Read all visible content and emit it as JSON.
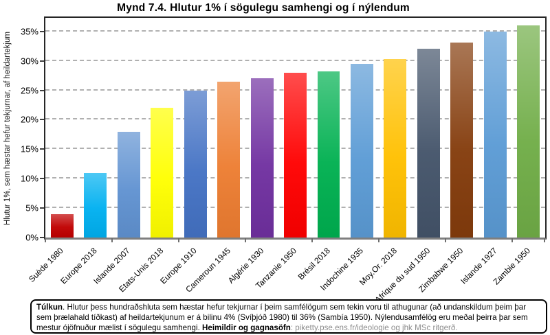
{
  "title": "Mynd 7.4. Hlutur 1% í sögulegu samhengi og í nýlendum",
  "chart_data": {
    "type": "bar",
    "title": "Mynd 7.4. Hlutur 1% í sögulegu samhengi og í nýlendum",
    "xlabel": "",
    "ylabel": "Hlutur 1%, sem hæstar hefur tekjurnar, af heildartekjum",
    "ylim": [
      0,
      37.3
    ],
    "grid": "horizontal-dashed",
    "legend": "none",
    "categories": [
      "Suède 1980",
      "Europe 2018",
      "Islande 2007",
      "Etats-Unis 2018",
      "Europe 1910",
      "Cameroun 1945",
      "Algérie 1930",
      "Tanzanie 1950",
      "Brésil 2018",
      "Indochine 1935",
      "Moy.Or. 2018",
      "Afrique du sud 1950",
      "Zimbabwe 1950",
      "Islande 1927",
      "Zambie 1950"
    ],
    "values": [
      4,
      11,
      18,
      22,
      25,
      26.5,
      27.1,
      28,
      28.2,
      29.5,
      30.3,
      32.1,
      33.1,
      35,
      36
    ],
    "bar_colors": [
      "#C00000",
      "#00B0F0",
      "#6092D1",
      "#FFFF00",
      "#4472C4",
      "#ED7D31",
      "#7030A0",
      "#FF0000",
      "#00B050",
      "#5B9BD5",
      "#FFC000",
      "#44546A",
      "#843C0C",
      "#5B9BD5",
      "#70AD47"
    ],
    "ytick_values": [
      0,
      5,
      10,
      15,
      20,
      25,
      30,
      35
    ],
    "ytick_labels": [
      "0%",
      "5%",
      "10%",
      "15%",
      "20%",
      "25%",
      "30%",
      "35%"
    ],
    "colors": {
      "gridline": "#B0B0B0",
      "plot_border": "#262626",
      "baseline": "#7F7F7F"
    }
  },
  "footnote": {
    "label_bold": "Túlkun",
    "body": ". Hlutur þess hundraðshluta sem hæstar hefur tekjurnar í þeim samfélögum sem tekin voru til athugunar (að undanskildum þeim þar sem þrælahald tíðkast) af heildartekjunum er á bilinu 4% (Svíþjóð 1980) til 36% (Sambía 1950). Nýlendusamfélög eru meðal þeirra þar sem mestur ójöfnuður mælist í sögulegu samhengi. ",
    "sources_bold": "Heimildir og gagnasöfn",
    "sources_gray": ": piketty.pse.ens.fr/ideologie og jhk MSc ritgerð."
  }
}
